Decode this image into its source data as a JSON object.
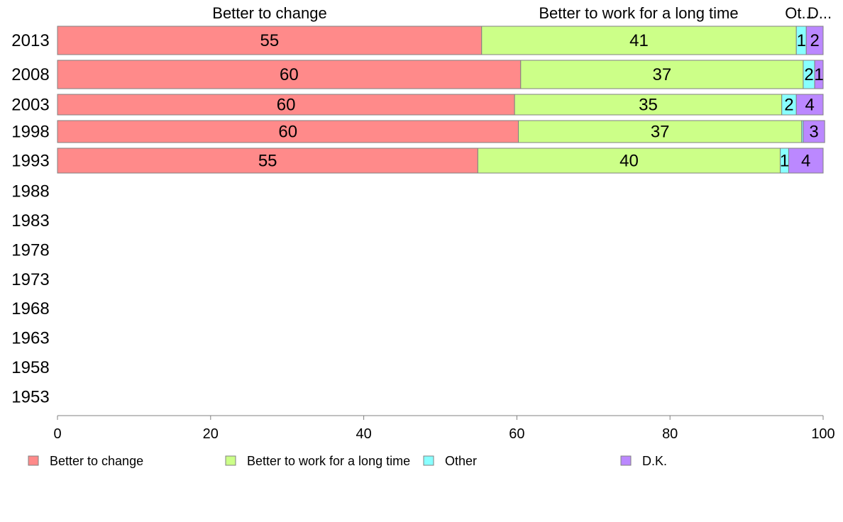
{
  "chart_data": {
    "type": "bar",
    "orientation": "horizontal",
    "stacked": true,
    "categories": [
      "2013",
      "2008",
      "2003",
      "1998",
      "1993",
      "1988",
      "1983",
      "1978",
      "1973",
      "1968",
      "1963",
      "1958",
      "1953"
    ],
    "series": [
      {
        "name": "Better to change",
        "color": "#FF8A8A",
        "values": [
          55.4,
          60.5,
          59.7,
          60.2,
          54.9,
          null,
          null,
          null,
          null,
          null,
          null,
          null,
          null
        ]
      },
      {
        "name": "Better to work for a long time",
        "color": "#CCFF88",
        "values": [
          41.1,
          36.9,
          34.9,
          37.0,
          39.5,
          null,
          null,
          null,
          null,
          null,
          null,
          null,
          null
        ]
      },
      {
        "name": "Other",
        "color": "#88FFFF",
        "values": [
          1.3,
          1.5,
          1.9,
          0.2,
          1.1,
          null,
          null,
          null,
          null,
          null,
          null,
          null,
          null
        ]
      },
      {
        "name": "D.K.",
        "color": "#BB88FF",
        "values": [
          2.2,
          1.1,
          3.5,
          2.8,
          4.5,
          null,
          null,
          null,
          null,
          null,
          null,
          null,
          null
        ]
      }
    ],
    "segment_labels": [
      [
        "55",
        "41",
        "1",
        "2"
      ],
      [
        "60",
        "37",
        "2",
        "1"
      ],
      [
        "60",
        "35",
        "2",
        "4"
      ],
      [
        "60",
        "37",
        "",
        "3"
      ],
      [
        "55",
        "40",
        "1",
        "4"
      ]
    ],
    "column_headers": [
      "Better to change",
      "Better to work for a long time",
      "Ot...",
      "D..."
    ],
    "x_ticks": [
      "0",
      "20",
      "40",
      "60",
      "80",
      "100"
    ],
    "xlim": [
      0,
      100
    ],
    "legend_position": "bottom",
    "grid": false,
    "title": "",
    "xlabel": "",
    "ylabel": ""
  }
}
